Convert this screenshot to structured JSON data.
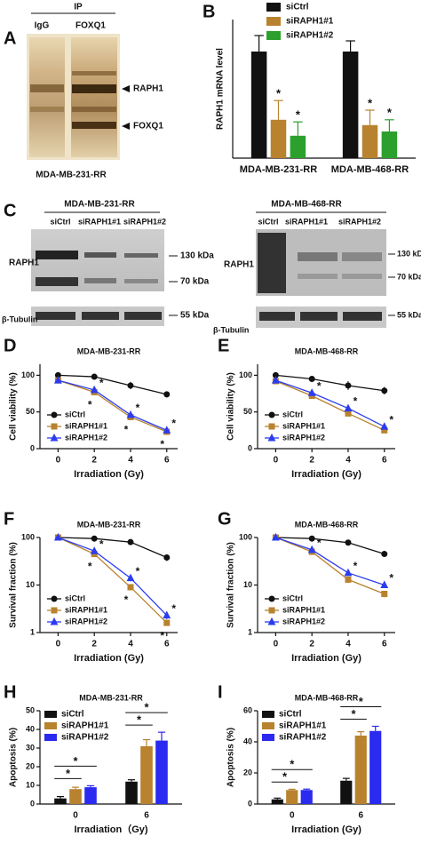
{
  "blot_panels": [
    {
      "panel_label": "A",
      "header": "IP",
      "lanes": [
        "IgG",
        "FOXQ1"
      ],
      "markers": [
        "RAPH1",
        "FOXQ1"
      ],
      "cell_line": "MDA-MB-231-RR"
    },
    {
      "panel_label": "C",
      "blots": [
        {
          "title": "MDA-MB-231-RR",
          "lanes": [
            "siCtrl",
            "siRAPH1#1",
            "siRAPH1#2"
          ],
          "row_label": "RAPH1",
          "sizes": [
            "130 kDa",
            "70 kDa"
          ],
          "loading_label": "β-Tubulin",
          "loading_size": "55 kDa"
        },
        {
          "title": "MDA-MB-468-RR",
          "lanes": [
            "siCtrl",
            "siRAPH1#1",
            "siRAPH1#2"
          ],
          "row_label": "RAPH1",
          "sizes": [
            "130 kDa",
            "70 kDa"
          ],
          "loading_label": "β-Tubulin",
          "loading_size": "55 kDa"
        }
      ]
    }
  ],
  "chart_data": [
    {
      "type": "bar",
      "panel_label": "B",
      "ylabel": "RAPH1 mRNA level",
      "categories": [
        "MDA-MB-231-RR",
        "MDA-MB-468-RR"
      ],
      "ylim": [
        0,
        1.3
      ],
      "legend": "top",
      "series": [
        {
          "name": "siCtrl",
          "color": "#111111",
          "values": [
            1.0,
            1.0
          ],
          "errors": [
            0.15,
            0.1
          ]
        },
        {
          "name": "siRAPH1#1",
          "color": "#b8822e",
          "values": [
            0.36,
            0.31
          ],
          "errors": [
            0.18,
            0.14
          ],
          "significance": [
            "*",
            "*"
          ]
        },
        {
          "name": "siRAPH1#2",
          "color": "#2ca02c",
          "values": [
            0.21,
            0.25
          ],
          "errors": [
            0.13,
            0.11
          ],
          "significance": [
            "*",
            "*"
          ]
        }
      ]
    },
    {
      "type": "line",
      "panel_label": "D",
      "title": "MDA-MB-231-RR",
      "xlabel": "Irradiation (Gy)",
      "ylabel": "Cell viability (%)",
      "x": [
        0,
        2,
        4,
        6
      ],
      "xlim": [
        -1,
        6.6
      ],
      "xticks": [
        0,
        2,
        4,
        6
      ],
      "ylim": [
        0,
        115
      ],
      "yticks": [
        0,
        50,
        100
      ],
      "legend": "lower left",
      "series": [
        {
          "name": "siCtrl",
          "color": "#111111",
          "values": [
            100,
            98,
            86,
            74
          ],
          "errors": [
            3,
            3,
            5,
            4
          ]
        },
        {
          "name": "siRAPH1#1",
          "color": "#b8822e",
          "values": [
            93,
            77,
            43,
            23
          ],
          "errors": [
            2,
            4,
            3,
            3
          ],
          "significance": [
            null,
            "*",
            "*",
            "*"
          ]
        },
        {
          "name": "siRAPH1#2",
          "color": "#2b3cf0",
          "values": [
            93,
            80,
            46,
            25
          ],
          "errors": [
            2,
            3,
            3,
            3
          ],
          "significance": [
            null,
            "*",
            "*",
            "*"
          ]
        }
      ]
    },
    {
      "type": "line",
      "panel_label": "E",
      "title": "MDA-MB-468-RR",
      "xlabel": "Irradiation (Gy)",
      "ylabel": "Cell viability (%)",
      "x": [
        0,
        2,
        4,
        6
      ],
      "xlim": [
        -1,
        6.6
      ],
      "xticks": [
        0,
        2,
        4,
        6
      ],
      "ylim": [
        0,
        115
      ],
      "yticks": [
        0,
        50,
        100
      ],
      "legend": "lower left",
      "series": [
        {
          "name": "siCtrl",
          "color": "#111111",
          "values": [
            100,
            95,
            86,
            79
          ],
          "errors": [
            3,
            3,
            6,
            5
          ]
        },
        {
          "name": "siRAPH1#1",
          "color": "#b8822e",
          "values": [
            92,
            72,
            48,
            25
          ],
          "errors": [
            2,
            4,
            4,
            4
          ]
        },
        {
          "name": "siRAPH1#2",
          "color": "#2b3cf0",
          "values": [
            93,
            76,
            55,
            30
          ],
          "errors": [
            2,
            3,
            4,
            3
          ],
          "significance": [
            null,
            "*",
            "*",
            "*"
          ]
        }
      ]
    },
    {
      "type": "line",
      "panel_label": "F",
      "title": "MDA-MB-231-RR",
      "xlabel": "Irradiation (Gy)",
      "ylabel": "Survival fraction (%)",
      "log_y": true,
      "x": [
        0,
        2,
        4,
        6
      ],
      "xlim": [
        -1,
        6.6
      ],
      "xticks": [
        0,
        2,
        4,
        6
      ],
      "ylim": [
        1,
        100
      ],
      "yticks": [
        1,
        10,
        100
      ],
      "legend": "lower left",
      "series": [
        {
          "name": "siCtrl",
          "color": "#111111",
          "values": [
            100,
            95,
            80,
            38
          ],
          "errors": [
            3,
            3,
            5,
            6
          ]
        },
        {
          "name": "siRAPH1#1",
          "color": "#b8822e",
          "values": [
            100,
            45,
            9,
            1.6
          ],
          "errors": [
            3,
            3,
            1,
            0.2
          ],
          "significance": [
            null,
            "*",
            "*",
            "*"
          ]
        },
        {
          "name": "siRAPH1#2",
          "color": "#2b3cf0",
          "values": [
            100,
            52,
            14,
            2.3
          ],
          "errors": [
            3,
            4,
            2,
            0.4
          ],
          "significance": [
            null,
            "*",
            "*",
            "*"
          ]
        }
      ]
    },
    {
      "type": "line",
      "panel_label": "G",
      "title": "MDA-MB-468-RR",
      "xlabel": "Irradiation (Gy)",
      "ylabel": "Survival fraction (%)",
      "log_y": true,
      "x": [
        0,
        2,
        4,
        6
      ],
      "xlim": [
        -1,
        6.6
      ],
      "xticks": [
        0,
        2,
        4,
        6
      ],
      "ylim": [
        1,
        100
      ],
      "yticks": [
        1,
        10,
        100
      ],
      "legend": "lower left",
      "series": [
        {
          "name": "siCtrl",
          "color": "#111111",
          "values": [
            100,
            95,
            78,
            45
          ],
          "errors": [
            3,
            3,
            4,
            5
          ]
        },
        {
          "name": "siRAPH1#1",
          "color": "#b8822e",
          "values": [
            100,
            50,
            13,
            6.5
          ],
          "errors": [
            3,
            3,
            2,
            1
          ]
        },
        {
          "name": "siRAPH1#2",
          "color": "#2b3cf0",
          "values": [
            100,
            55,
            18,
            10
          ],
          "errors": [
            3,
            4,
            2,
            1
          ],
          "significance": [
            null,
            "*",
            "*",
            "*"
          ]
        }
      ]
    },
    {
      "type": "bar",
      "panel_label": "H",
      "title": "MDA-MB-231-RR",
      "xlabel": "Irradiation（Gy)",
      "ylabel": "Apoptosis (%)",
      "categories": [
        "0",
        "6"
      ],
      "ylim": [
        0,
        50
      ],
      "yticks": [
        0,
        10,
        20,
        30,
        40,
        50
      ],
      "legend": "upper left",
      "brackets": [
        "*",
        "*",
        "*",
        "*"
      ],
      "series": [
        {
          "name": "siCtrl",
          "color": "#111111",
          "values": [
            3,
            12
          ],
          "errors": [
            1,
            1
          ]
        },
        {
          "name": "siRAPH1#1",
          "color": "#b8822e",
          "values": [
            8,
            31
          ],
          "errors": [
            1,
            3.5
          ]
        },
        {
          "name": "siRAPH1#2",
          "color": "#2a2af0",
          "values": [
            9,
            34
          ],
          "errors": [
            0.8,
            4.5
          ]
        }
      ]
    },
    {
      "type": "bar",
      "panel_label": "I",
      "title": "MDA-MB-468-RR",
      "xlabel": "Irradiation (Gy)",
      "ylabel": "Apoptosis (%)",
      "categories": [
        "0",
        "6"
      ],
      "ylim": [
        0,
        60
      ],
      "yticks": [
        0,
        20,
        40,
        60
      ],
      "legend": "upper left",
      "brackets": [
        "*",
        "*",
        "*",
        "*"
      ],
      "series": [
        {
          "name": "siCtrl",
          "color": "#111111",
          "values": [
            3,
            15
          ],
          "errors": [
            0.8,
            1.5
          ]
        },
        {
          "name": "siRAPH1#1",
          "color": "#b8822e",
          "values": [
            9,
            44
          ],
          "errors": [
            0.5,
            2.5
          ]
        },
        {
          "name": "siRAPH1#2",
          "color": "#2a2af0",
          "values": [
            9,
            47
          ],
          "errors": [
            0.6,
            3
          ]
        }
      ]
    }
  ]
}
